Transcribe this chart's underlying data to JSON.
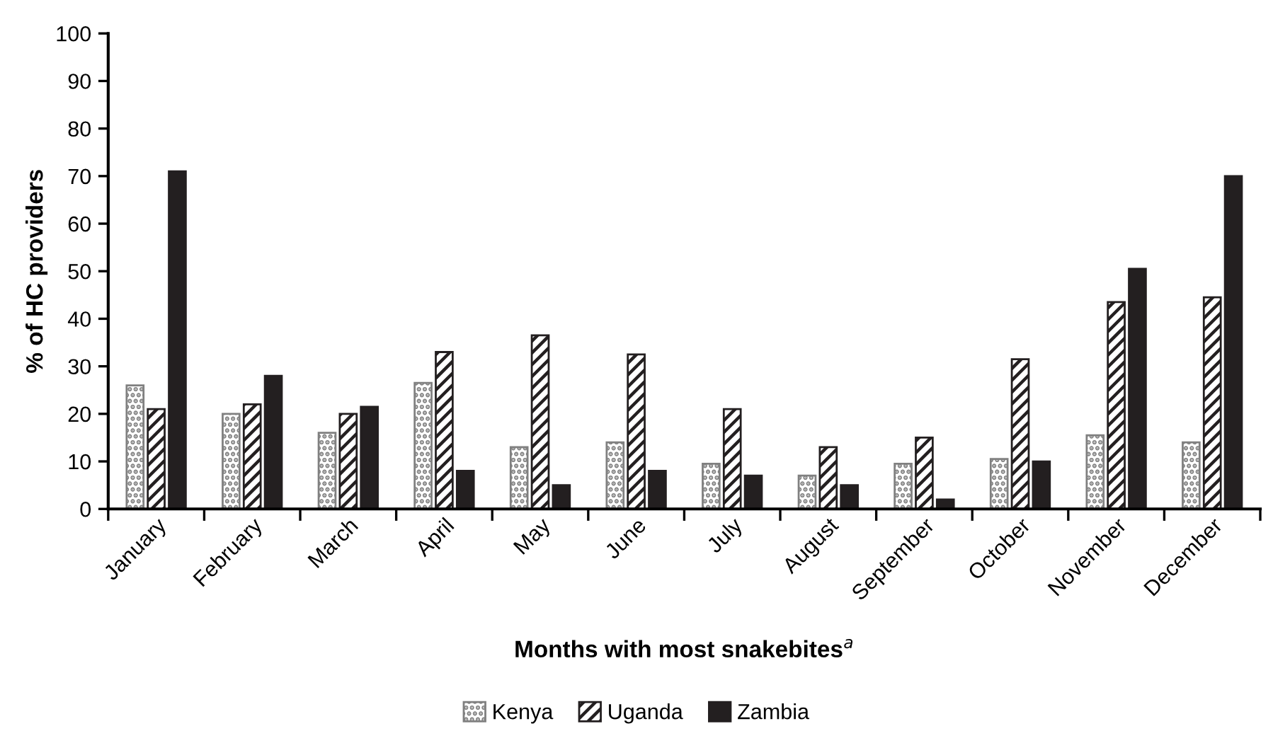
{
  "chart_data": {
    "type": "bar",
    "categories": [
      "January",
      "February",
      "March",
      "April",
      "May",
      "June",
      "July",
      "August",
      "September",
      "October",
      "November",
      "December"
    ],
    "series": [
      {
        "name": "Kenya",
        "color": "#808080",
        "values": [
          26,
          20,
          16,
          26.5,
          13,
          14,
          9.5,
          7,
          9.5,
          10.5,
          15.5,
          14
        ]
      },
      {
        "name": "Uganda",
        "color": "#231f20",
        "values": [
          21,
          22,
          20,
          33,
          36.5,
          32.5,
          21,
          13,
          15,
          31.5,
          43.5,
          44.5
        ]
      },
      {
        "name": "Zambia",
        "color": "#231f20",
        "values": [
          71,
          28,
          21.5,
          8,
          5,
          8,
          7,
          5,
          2,
          10,
          50.5,
          70
        ]
      }
    ],
    "xlabel": "Months with most snakebites$^{a}$",
    "ylabel": "% of HC providers",
    "ylim": [
      0,
      100
    ],
    "yticks": [
      0,
      10,
      20,
      30,
      40,
      50,
      60,
      70,
      80,
      90,
      100
    ],
    "grid": false,
    "legend": "bottom"
  }
}
